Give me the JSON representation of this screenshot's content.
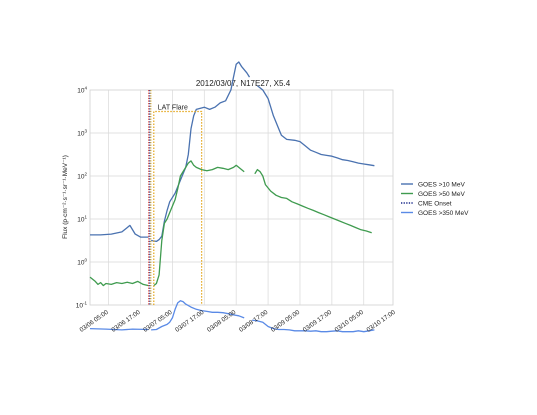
{
  "chart_data": {
    "type": "line",
    "title": "2012/03/07, N17E27, X5.4",
    "ylabel_html": "Flux (p·cm⁻²·s⁻¹·sr⁻¹·MeV⁻¹)",
    "y_scale": "log",
    "ylim": [
      0.1,
      10000
    ],
    "y_ticks": [
      {
        "value": 0.1,
        "base": "10",
        "exp": "-1"
      },
      {
        "value": 1,
        "base": "10",
        "exp": "0"
      },
      {
        "value": 10,
        "base": "10",
        "exp": "1"
      },
      {
        "value": 100,
        "base": "10",
        "exp": "2"
      },
      {
        "value": 1000,
        "base": "10",
        "exp": "3"
      },
      {
        "value": 10000,
        "base": "10",
        "exp": "4"
      }
    ],
    "y_tick_labels_raw": [
      "10^-1",
      "10^0",
      "10^1",
      "10^2",
      "10^3",
      "10^4"
    ],
    "x_unit": "hours from 03/06 00:00",
    "xlim": [
      -2,
      112
    ],
    "x_ticks": [
      {
        "x": 5,
        "label": "03/06 05:00"
      },
      {
        "x": 17,
        "label": "03/06 17:00"
      },
      {
        "x": 29,
        "label": "03/07 05:00"
      },
      {
        "x": 41,
        "label": "03/07 17:00"
      },
      {
        "x": 53,
        "label": "03/08 05:00"
      },
      {
        "x": 65,
        "label": "03/08 17:00"
      },
      {
        "x": 77,
        "label": "03/09 05:00"
      },
      {
        "x": 89,
        "label": "03/09 17:00"
      },
      {
        "x": 101,
        "label": "03/10 05:00"
      },
      {
        "x": 113,
        "label": "03/10 17:00"
      }
    ],
    "grid": true,
    "legend_position": "right",
    "series": [
      {
        "name": "GOES >10 MeV",
        "color": "#4a72b0",
        "segments": [
          [
            [
              -2,
              0.63
            ],
            [
              2,
              0.63
            ],
            [
              6,
              0.65
            ],
            [
              10,
              0.7
            ],
            [
              12,
              0.8
            ],
            [
              13,
              0.85
            ],
            [
              15,
              0.65
            ],
            [
              17,
              0.58
            ],
            [
              20,
              0.58
            ]
          ],
          [
            [
              21,
              0.5
            ],
            [
              23,
              0.48
            ],
            [
              24,
              0.52
            ],
            [
              25,
              0.6
            ],
            [
              26,
              0.95
            ],
            [
              27,
              1.2
            ],
            [
              28,
              1.4
            ],
            [
              30,
              1.6
            ],
            [
              32,
              1.9
            ],
            [
              34,
              2.2
            ],
            [
              35,
              2.5
            ],
            [
              36,
              3.1
            ],
            [
              37,
              3.4
            ],
            [
              38,
              3.55
            ],
            [
              41,
              3.6
            ],
            [
              43,
              3.55
            ],
            [
              45,
              3.6
            ],
            [
              47,
              3.7
            ],
            [
              49,
              3.75
            ],
            [
              51,
              4.0
            ],
            [
              52,
              4.3
            ],
            [
              53,
              4.6
            ],
            [
              54,
              4.65
            ],
            [
              55,
              4.55
            ],
            [
              57,
              4.4
            ],
            [
              58,
              4.3
            ]
          ],
          [
            [
              61,
              4.1
            ],
            [
              63,
              4.0
            ],
            [
              65,
              3.8
            ],
            [
              67,
              3.4
            ],
            [
              69,
              3.1
            ],
            [
              70,
              2.95
            ],
            [
              72,
              2.85
            ],
            [
              75,
              2.83
            ],
            [
              77,
              2.8
            ],
            [
              79,
              2.7
            ],
            [
              81,
              2.6
            ],
            [
              83,
              2.55
            ],
            [
              85,
              2.5
            ],
            [
              87,
              2.48
            ],
            [
              89,
              2.46
            ],
            [
              91,
              2.42
            ],
            [
              93,
              2.38
            ],
            [
              95,
              2.36
            ],
            [
              97,
              2.33
            ],
            [
              99,
              2.3
            ],
            [
              101,
              2.28
            ],
            [
              103,
              2.26
            ],
            [
              105,
              2.24
            ]
          ]
        ]
      },
      {
        "name": "GOES >50 MeV",
        "color": "#3f9b4f",
        "segments": [
          [
            [
              -2,
              -0.35
            ],
            [
              0,
              -0.45
            ],
            [
              1,
              -0.52
            ],
            [
              2,
              -0.48
            ],
            [
              3,
              -0.55
            ],
            [
              4,
              -0.5
            ],
            [
              6,
              -0.52
            ],
            [
              8,
              -0.48
            ],
            [
              10,
              -0.5
            ],
            [
              12,
              -0.47
            ],
            [
              14,
              -0.5
            ],
            [
              16,
              -0.45
            ],
            [
              18,
              -0.52
            ],
            [
              20,
              -0.55
            ]
          ],
          [
            [
              22,
              -0.55
            ],
            [
              23,
              -0.5
            ],
            [
              24,
              -0.3
            ],
            [
              25,
              0.5
            ],
            [
              26,
              0.9
            ],
            [
              27,
              1.0
            ],
            [
              28,
              1.15
            ],
            [
              29,
              1.3
            ],
            [
              30,
              1.45
            ],
            [
              31,
              1.7
            ],
            [
              32,
              2.0
            ],
            [
              33,
              2.1
            ],
            [
              34,
              2.2
            ],
            [
              35,
              2.3
            ],
            [
              36,
              2.35
            ],
            [
              37,
              2.25
            ],
            [
              38,
              2.2
            ],
            [
              40,
              2.15
            ],
            [
              42,
              2.12
            ],
            [
              44,
              2.15
            ],
            [
              46,
              2.2
            ],
            [
              48,
              2.18
            ],
            [
              50,
              2.15
            ],
            [
              52,
              2.2
            ],
            [
              53,
              2.25
            ],
            [
              54,
              2.2
            ],
            [
              56,
              2.1
            ]
          ],
          [
            [
              60,
              2.05
            ],
            [
              61,
              2.15
            ],
            [
              62,
              2.1
            ],
            [
              63,
              2.0
            ],
            [
              64,
              1.8
            ],
            [
              66,
              1.65
            ],
            [
              68,
              1.55
            ],
            [
              70,
              1.5
            ],
            [
              72,
              1.48
            ],
            [
              74,
              1.4
            ],
            [
              76,
              1.35
            ],
            [
              78,
              1.3
            ],
            [
              80,
              1.25
            ],
            [
              82,
              1.2
            ],
            [
              84,
              1.15
            ],
            [
              86,
              1.1
            ],
            [
              88,
              1.05
            ],
            [
              90,
              1.0
            ],
            [
              92,
              0.95
            ],
            [
              94,
              0.9
            ],
            [
              96,
              0.85
            ],
            [
              98,
              0.8
            ],
            [
              100,
              0.75
            ],
            [
              102,
              0.72
            ],
            [
              104,
              0.68
            ]
          ]
        ]
      },
      {
        "name": "GOES >350 MeV",
        "color": "#5a8ae6",
        "segments": [
          [
            [
              -2,
              -1.55
            ],
            [
              4,
              -1.56
            ],
            [
              10,
              -1.58
            ],
            [
              14,
              -1.56
            ],
            [
              20,
              -1.57
            ]
          ],
          [
            [
              21,
              -1.58
            ],
            [
              23,
              -1.57
            ],
            [
              25,
              -1.5
            ],
            [
              27,
              -1.45
            ],
            [
              28,
              -1.4
            ],
            [
              29,
              -1.3
            ],
            [
              30,
              -1.1
            ],
            [
              31,
              -0.95
            ],
            [
              32,
              -0.9
            ],
            [
              33,
              -0.92
            ],
            [
              34,
              -0.98
            ],
            [
              36,
              -1.05
            ],
            [
              38,
              -1.1
            ],
            [
              40,
              -1.13
            ],
            [
              42,
              -1.15
            ],
            [
              44,
              -1.17
            ],
            [
              46,
              -1.17
            ],
            [
              48,
              -1.18
            ],
            [
              50,
              -1.2
            ],
            [
              52,
              -1.23
            ],
            [
              54,
              -1.25
            ],
            [
              56,
              -1.3
            ]
          ],
          [
            [
              59,
              -1.35
            ],
            [
              61,
              -1.37
            ],
            [
              63,
              -1.4
            ],
            [
              65,
              -1.5
            ],
            [
              67,
              -1.55
            ],
            [
              69,
              -1.57
            ],
            [
              71,
              -1.57
            ],
            [
              73,
              -1.58
            ],
            [
              75,
              -1.6
            ],
            [
              77,
              -1.6
            ],
            [
              79,
              -1.6
            ],
            [
              81,
              -1.61
            ],
            [
              83,
              -1.6
            ],
            [
              85,
              -1.62
            ],
            [
              87,
              -1.62
            ],
            [
              89,
              -1.61
            ],
            [
              91,
              -1.6
            ],
            [
              93,
              -1.62
            ],
            [
              95,
              -1.62
            ],
            [
              97,
              -1.62
            ],
            [
              99,
              -1.6
            ],
            [
              101,
              -1.62
            ],
            [
              103,
              -1.6
            ],
            [
              105,
              -1.58
            ]
          ]
        ]
      }
    ],
    "cme_onset": {
      "name": "CME Onset",
      "x": 20.5,
      "colors": [
        "#e0392b",
        "#1a2a8a",
        "#e0b32b"
      ]
    },
    "lat_flare": {
      "label": "LAT Flare",
      "x_start": 22,
      "x_end": 40,
      "level": 3.5,
      "color": "#e4a61a"
    },
    "legend": [
      {
        "name": "GOES >10 MeV",
        "color": "#4a72b0",
        "style": "solid"
      },
      {
        "name": "GOES >50 MeV",
        "color": "#3f9b4f",
        "style": "solid"
      },
      {
        "name": "CME Onset",
        "color": "#1a2a8a",
        "style": "dotted"
      },
      {
        "name": "GOES >350 MeV",
        "color": "#5a8ae6",
        "style": "solid"
      }
    ]
  }
}
